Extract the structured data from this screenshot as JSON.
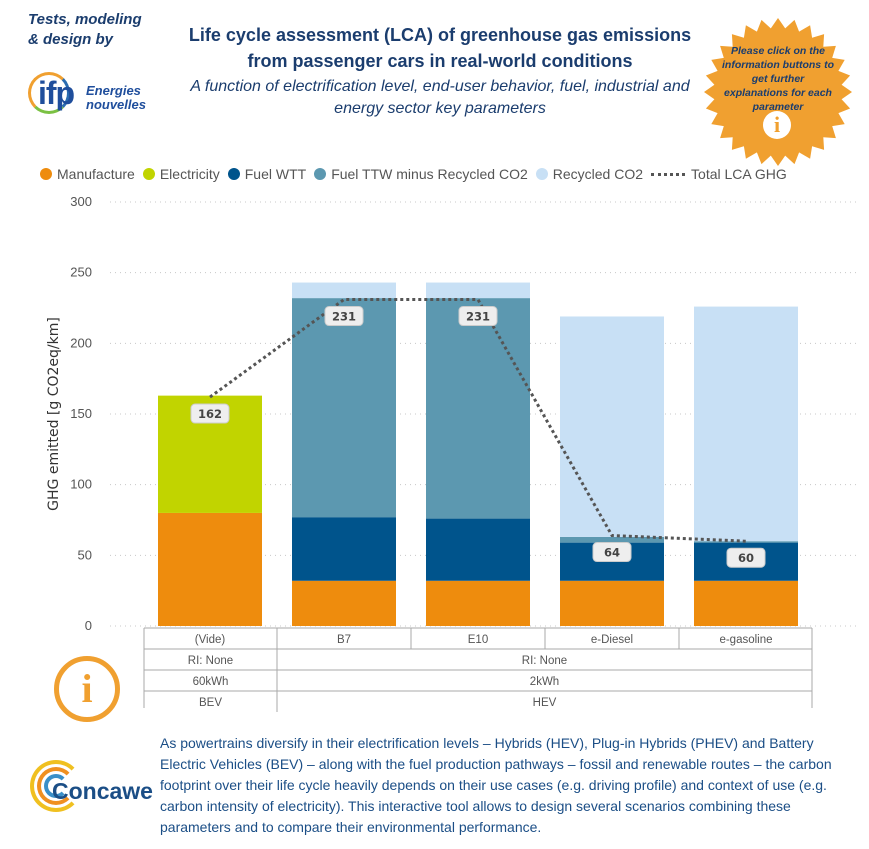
{
  "header": {
    "credit_line1": "Tests, modeling",
    "credit_line2": "& design by",
    "ifp_logo_text": "ifp",
    "ifp_logo_sub1": "Energies",
    "ifp_logo_sub2": "nouvelles",
    "title": "Life cycle assessment (LCA) of greenhouse gas emissions from passenger cars in real-world conditions",
    "subtitle": "A function of electrification level, end-user behavior, fuel, industrial and energy sector key parameters",
    "badge_text": "Please click on the information buttons to get further explanations for each parameter",
    "badge_icon": "i"
  },
  "colors": {
    "manufacture": "#ee8c0d",
    "electricity": "#c1d400",
    "fuel_wtt": "#00548c",
    "fuel_ttw": "#5c98b0",
    "recycled": "#c8e0f5",
    "total": "#555555",
    "badge": "#f0a030"
  },
  "chart_data": {
    "type": "bar",
    "stacked": true,
    "categories": [
      "(Vide)",
      "B7",
      "E10",
      "e-Diesel",
      "e-gasoline"
    ],
    "series": [
      {
        "name": "Manufacture",
        "values": [
          80,
          32,
          32,
          32,
          32
        ]
      },
      {
        "name": "Electricity",
        "values": [
          83,
          0,
          0,
          0,
          0
        ]
      },
      {
        "name": "Fuel WTT",
        "values": [
          0,
          45,
          44,
          27,
          27
        ]
      },
      {
        "name": "Fuel TTW minus Recycled CO2",
        "values": [
          0,
          155,
          156,
          4,
          1
        ]
      },
      {
        "name": "Recycled CO2",
        "values": [
          0,
          11,
          11,
          156,
          166
        ]
      }
    ],
    "line": {
      "name": "Total LCA GHG",
      "values": [
        162,
        231,
        231,
        64,
        60
      ]
    },
    "data_labels": [
      "162",
      "231",
      "231",
      "64",
      "60"
    ],
    "ylabel": "GHG emitted [g CO2eq/km]",
    "xlabel": "",
    "ylim": [
      0,
      300
    ],
    "yticks": [
      0,
      50,
      100,
      150,
      200,
      250,
      300
    ],
    "grid": true,
    "legend_position": "top",
    "x_hierarchy": {
      "row1": [
        {
          "label": "RI: None",
          "span": [
            0,
            0
          ]
        },
        {
          "label": "RI: None",
          "span": [
            1,
            4
          ]
        }
      ],
      "row2": [
        {
          "label": "60kWh",
          "span": [
            0,
            0
          ]
        },
        {
          "label": "2kWh",
          "span": [
            1,
            4
          ]
        }
      ],
      "row3": [
        {
          "label": "BEV",
          "span": [
            0,
            0
          ]
        },
        {
          "label": "HEV",
          "span": [
            1,
            4
          ]
        }
      ]
    }
  },
  "footer": {
    "info_icon": "i",
    "concawe_logo": "Concawe",
    "description": "As powertrains diversify in their electrification levels – Hybrids (HEV), Plug-in Hybrids (PHEV) and Battery Electric Vehicles (BEV) – along with the fuel production pathways – fossil and renewable routes – the carbon footprint over their life cycle heavily depends on their use cases (e.g. driving profile) and context of use (e.g. carbon intensity of electricity). This interactive tool allows to design several scenarios combining these parameters and to compare their environmental performance."
  }
}
